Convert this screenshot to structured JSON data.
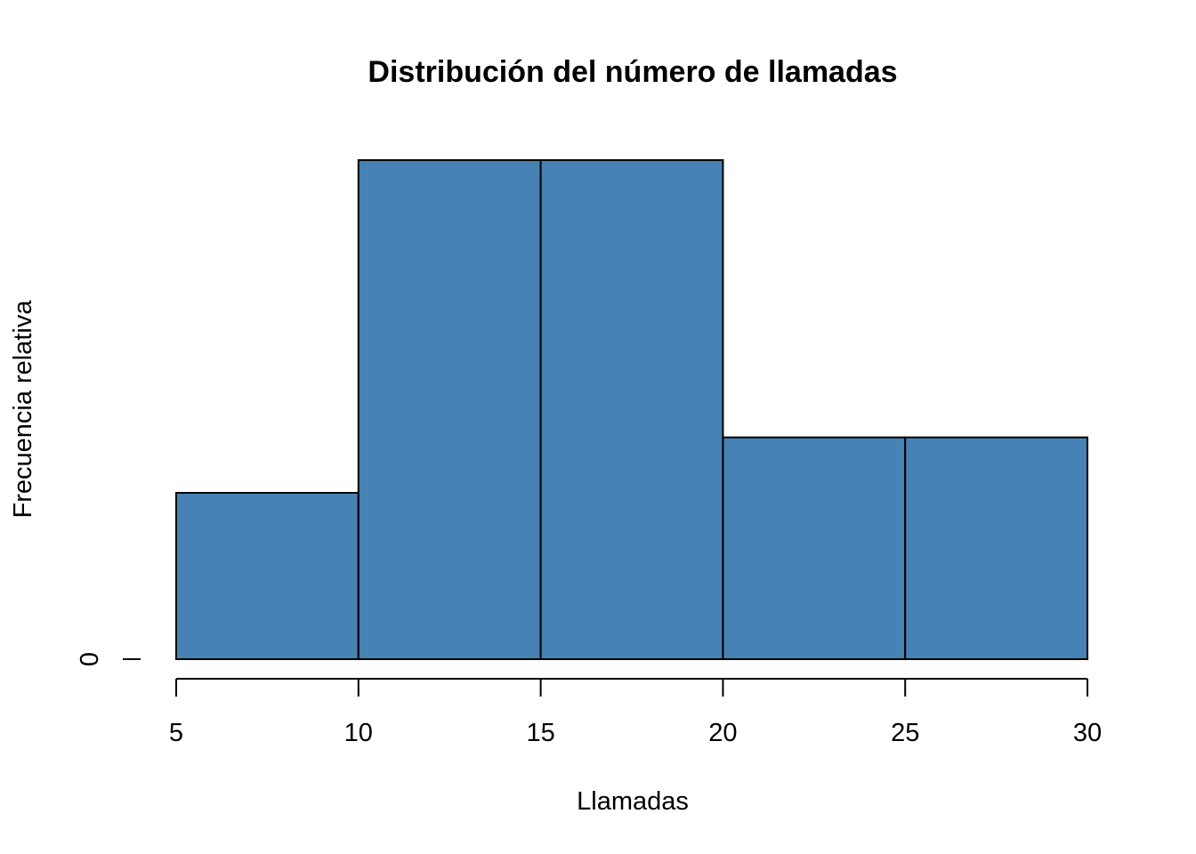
{
  "chart_data": {
    "type": "bar",
    "title": "Distribución del número de llamadas",
    "xlabel": "Llamadas",
    "ylabel": "Frecuencia relativa",
    "bins": [
      {
        "from": 5,
        "to": 10,
        "value": 0.12
      },
      {
        "from": 10,
        "to": 15,
        "value": 0.36
      },
      {
        "from": 15,
        "to": 20,
        "value": 0.36
      },
      {
        "from": 20,
        "to": 25,
        "value": 0.16
      },
      {
        "from": 25,
        "to": 30,
        "value": 0.16
      }
    ],
    "xlim": [
      5,
      30
    ],
    "ylim": [
      0,
      0.36
    ],
    "x_ticks": [
      "5",
      "10",
      "15",
      "20",
      "25",
      "30"
    ],
    "y_ticks": [
      "0"
    ],
    "bar_color": "#4682B4",
    "border_color": "#000000"
  }
}
